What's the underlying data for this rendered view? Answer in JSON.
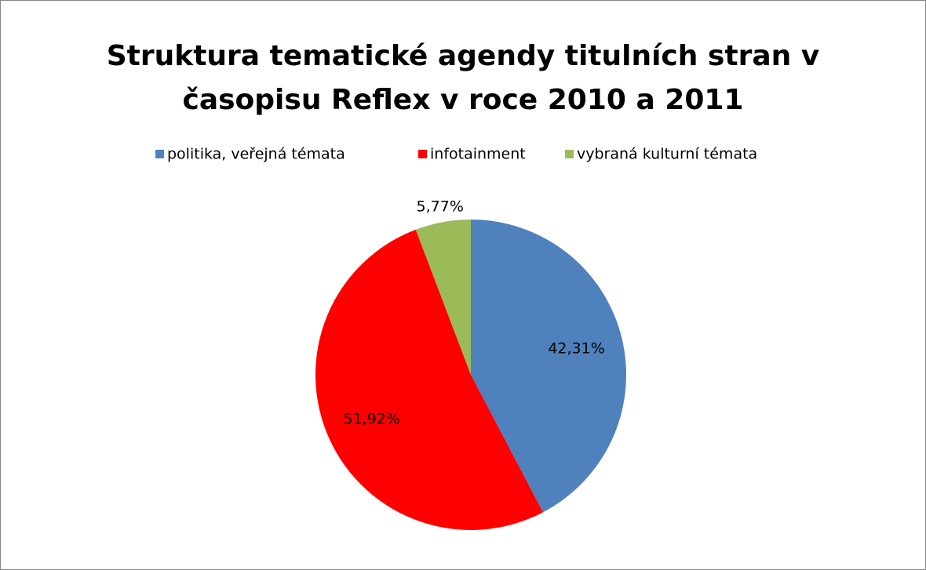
{
  "chart_data": {
    "type": "pie",
    "title": "Struktura tematické agendy titulních stran v časopisu Reflex v roce 2010 a 2011",
    "categories": [
      "politika, veřejná témata",
      "infotainment",
      "vybraná kulturní témata"
    ],
    "values": [
      42.31,
      51.92,
      5.77
    ],
    "value_labels": [
      "42,31%",
      "51,92%",
      "5,77%"
    ],
    "colors": [
      "#4f81bd",
      "#ff0000",
      "#9bbb59"
    ],
    "legend": "top"
  }
}
